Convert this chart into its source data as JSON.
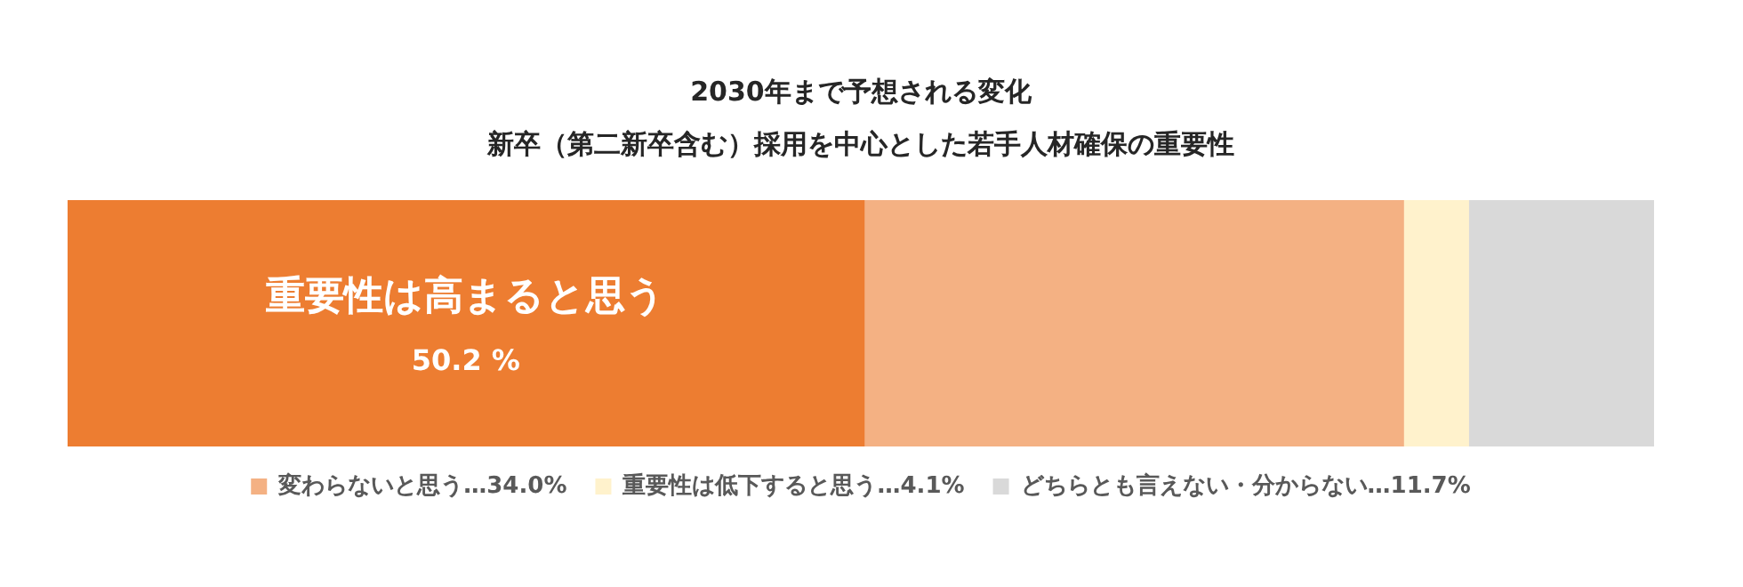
{
  "chart_data": {
    "type": "bar",
    "orientation": "horizontal",
    "stacked": true,
    "title": [
      "2030年まで予想される変化",
      "新卒（第二新卒含む）採用を中心とした若手人材確保の重要性"
    ],
    "categories": [
      null
    ],
    "series": [
      {
        "name": "重要性は高まると思う",
        "color": "#ed7d31",
        "values": [
          50.2
        ],
        "value_labels": [
          "50.2 %"
        ]
      },
      {
        "name": "変わらないと思う…34.0%",
        "color": "#f4b183",
        "values": [
          34.0
        ]
      },
      {
        "name": "重要性は低下すると思う…4.1%",
        "color": "#fff2cc",
        "values": [
          4.1
        ]
      },
      {
        "name": "どちらとも言えない・分からない…11.7%",
        "color": "#d9d9d9",
        "values": [
          11.7
        ]
      }
    ],
    "xlim": [
      0,
      100
    ],
    "legend": "bottom"
  }
}
